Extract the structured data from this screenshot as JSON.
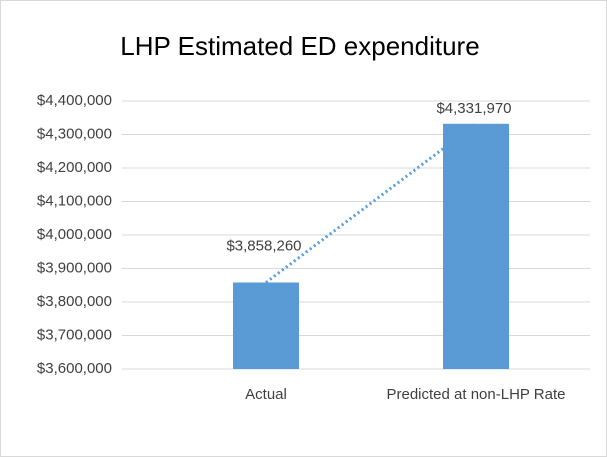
{
  "chart_data": {
    "type": "bar",
    "title": "LHP Estimated ED expenditure",
    "categories": [
      "Actual",
      "Predicted at non-LHP Rate"
    ],
    "values": [
      3858260,
      4331970
    ],
    "value_labels": [
      "$3,858,260",
      "$4,331,970"
    ],
    "color": "#5b9bd5",
    "trendline": true,
    "ylim": [
      3600000,
      4400000
    ],
    "yticks": [
      {
        "value": 3600000,
        "label": "$3,600,000"
      },
      {
        "value": 3700000,
        "label": "$3,700,000"
      },
      {
        "value": 3800000,
        "label": "$3,800,000"
      },
      {
        "value": 3900000,
        "label": "$3,900,000"
      },
      {
        "value": 4000000,
        "label": "$4,000,000"
      },
      {
        "value": 4100000,
        "label": "$4,100,000"
      },
      {
        "value": 4200000,
        "label": "$4,200,000"
      },
      {
        "value": 4300000,
        "label": "$4,300,000"
      },
      {
        "value": 4400000,
        "label": "$4,400,000"
      }
    ],
    "grid": true
  }
}
